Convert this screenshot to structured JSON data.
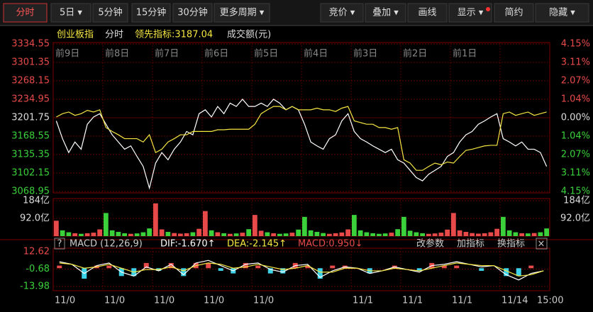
{
  "toolbar": {
    "left": [
      "分时",
      "5日 ▾",
      "5分钟",
      "15分钟",
      "30分钟",
      "更多周期 ▾"
    ],
    "right": [
      "竞价 ▾",
      "叠加 ▾",
      "画线",
      "显示 ▾",
      "简约",
      "隐藏 ▾"
    ]
  },
  "info": {
    "name": "创业板指",
    "mode": "分时",
    "indicator": "领先指标:3187.04",
    "volume_label": "成交额(元)"
  },
  "chart_data": [
    {
      "type": "line",
      "up_color": "#e84a4a",
      "down_color": "#3ad13a",
      "day_labels": [
        "前9日",
        "前8日",
        "前7日",
        "前6日",
        "前5日",
        "前4日",
        "前3日",
        "前2日",
        "前1日"
      ],
      "x_labels": [
        "11/0",
        "11/0",
        "11/0",
        "11/0",
        "11/0",
        null,
        "11/1",
        "11/1",
        "11/1",
        "11/14",
        "15:00"
      ],
      "ylim": [
        3068.95,
        3334.55
      ],
      "yticks": [
        {
          "value": 3334.55,
          "label": "3334.55"
        },
        {
          "value": 3301.35,
          "label": "3301.35"
        },
        {
          "value": 3268.15,
          "label": "3268.15"
        },
        {
          "value": 3234.95,
          "label": "3234.95"
        },
        {
          "value": 3201.75,
          "label": "3201.75"
        },
        {
          "value": 3168.55,
          "label": "3168.55"
        },
        {
          "value": 3135.35,
          "label": "3135.35"
        },
        {
          "value": 3102.15,
          "label": "3102.15"
        },
        {
          "value": 3068.95,
          "label": "3068.95"
        }
      ],
      "y2lim": [
        -4.15,
        4.15
      ],
      "y2ticks": [
        {
          "value": 4.15,
          "label": "4.15%"
        },
        {
          "value": 3.11,
          "label": "3.11%"
        },
        {
          "value": 2.07,
          "label": "2.07%"
        },
        {
          "value": 1.04,
          "label": "1.04%"
        },
        {
          "value": 0,
          "label": "0.00%"
        },
        {
          "value": -1.04,
          "label": "1.04%"
        },
        {
          "value": -2.07,
          "label": "2.07%"
        },
        {
          "value": -3.11,
          "label": "3.11%"
        },
        {
          "value": -4.15,
          "label": "4.15%"
        }
      ],
      "series": [
        {
          "name": "创业板指",
          "color": "#ffffff",
          "values": [
            3196,
            3164,
            3139,
            3158,
            3145,
            3190,
            3203,
            3209,
            3190,
            3171,
            3158,
            3145,
            3151,
            3132,
            3114,
            3075,
            3120,
            3139,
            3126,
            3145,
            3158,
            3177,
            3171,
            3209,
            3216,
            3203,
            3222,
            3209,
            3228,
            3222,
            3235,
            3222,
            3222,
            3228,
            3222,
            3235,
            3228,
            3216,
            3222,
            3216,
            3190,
            3158,
            3151,
            3145,
            3164,
            3171,
            3196,
            3209,
            3177,
            3164,
            3158,
            3151,
            3145,
            3139,
            3145,
            3126,
            3120,
            3107,
            3094,
            3088,
            3100,
            3107,
            3114,
            3132,
            3139,
            3158,
            3171,
            3177,
            3190,
            3196,
            3203,
            3209,
            3164,
            3158,
            3151,
            3158,
            3145,
            3145,
            3139,
            3114
          ]
        },
        {
          "name": "领先指标",
          "color": "#f5e642",
          "values": [
            3203,
            3209,
            3212,
            3206,
            3209,
            3215,
            3212,
            3216,
            3184,
            3177,
            3171,
            3164,
            3164,
            3164,
            3158,
            3171,
            3139,
            3145,
            3158,
            3164,
            3171,
            3171,
            3177,
            3177,
            3177,
            3177,
            3180,
            3180,
            3181,
            3181,
            3181,
            3181,
            3190,
            3209,
            3216,
            3222,
            3222,
            3216,
            3222,
            3216,
            3216,
            3216,
            3219,
            3216,
            3216,
            3213,
            3219,
            3222,
            3196,
            3193,
            3190,
            3190,
            3184,
            3184,
            3181,
            3184,
            3126,
            3120,
            3107,
            3107,
            3114,
            3120,
            3117,
            3122,
            3120,
            3132,
            3143,
            3145,
            3148,
            3151,
            3152,
            3152,
            3209,
            3212,
            3206,
            3209,
            3212,
            3206,
            3209,
            3212
          ]
        }
      ]
    },
    {
      "type": "bar",
      "ylim": [
        0,
        184
      ],
      "yticks": [
        {
          "value": 184,
          "label": "184亿"
        },
        {
          "value": 92,
          "label": "92.0亿"
        }
      ],
      "values": [
        80,
        30,
        20,
        15,
        12,
        15,
        18,
        35,
        120,
        30,
        22,
        15,
        12,
        14,
        20,
        40,
        170,
        35,
        22,
        16,
        13,
        15,
        20,
        38,
        130,
        30,
        20,
        15,
        12,
        14,
        18,
        36,
        110,
        28,
        20,
        15,
        12,
        14,
        18,
        34,
        100,
        30,
        22,
        16,
        12,
        15,
        19,
        35,
        110,
        30,
        20,
        15,
        12,
        14,
        18,
        36,
        100,
        28,
        20,
        15,
        12,
        14,
        18,
        34,
        120,
        30,
        22,
        16,
        13,
        15,
        20,
        38,
        100,
        30,
        20,
        15,
        14,
        16,
        20,
        40
      ]
    },
    {
      "type": "macd",
      "title": "MACD (12,26,9)",
      "help": "?",
      "dif_label": "DIF:-1.670↑",
      "dea_label": "DEA:-2.145↑",
      "macd_label": "MACD:0.950↓",
      "actions": [
        "改参数",
        "加指标",
        "换指标"
      ],
      "close": "×",
      "ylim": [
        -13.98,
        12.62
      ],
      "yticks": [
        {
          "value": 12.62,
          "label": "12.62"
        },
        {
          "value": -0.68,
          "label": "-0.68"
        },
        {
          "value": -13.98,
          "label": "-13.98"
        }
      ],
      "series": [
        {
          "name": "DIF",
          "color": "#ffffff",
          "values": [
            5,
            3,
            -4,
            2,
            4,
            -3,
            -6,
            1,
            -2,
            3,
            -5,
            4,
            6,
            2,
            -2,
            3,
            4,
            -1,
            -3,
            2,
            3,
            -7,
            -2,
            1,
            0,
            -4,
            -2,
            1,
            -1,
            -3,
            2,
            3,
            5,
            3,
            1,
            2,
            -5,
            -9,
            -4,
            -2
          ]
        },
        {
          "name": "DEA",
          "color": "#f5e642",
          "values": [
            4,
            3,
            0,
            1,
            3,
            0,
            -3,
            -1,
            -1,
            1,
            -2,
            2,
            4,
            3,
            0,
            1,
            3,
            1,
            -1,
            0,
            2,
            -3,
            -3,
            0,
            0,
            -2,
            -2,
            0,
            -1,
            -2,
            0,
            2,
            4,
            3,
            2,
            2,
            -2,
            -6,
            -5,
            -2
          ]
        },
        {
          "name": "MACD",
          "values": [
            2,
            0,
            -8,
            2,
            2,
            -6,
            -6,
            4,
            -2,
            4,
            -6,
            4,
            4,
            -2,
            -4,
            4,
            2,
            -4,
            -4,
            4,
            2,
            -8,
            2,
            2,
            0,
            -4,
            0,
            2,
            0,
            -2,
            4,
            2,
            2,
            0,
            -2,
            0,
            -6,
            -6,
            2,
            0
          ]
        }
      ]
    }
  ]
}
